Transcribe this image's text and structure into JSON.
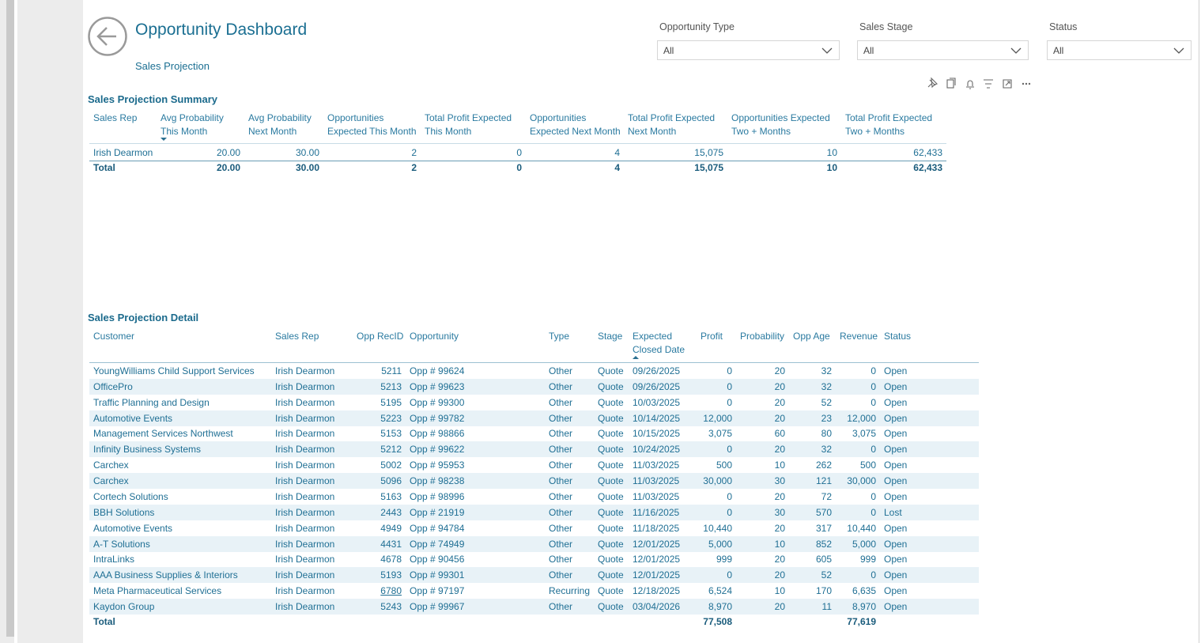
{
  "header": {
    "title": "Opportunity Dashboard",
    "subtitle": "Sales Projection"
  },
  "filters": [
    {
      "label": "Opportunity Type",
      "value": "All"
    },
    {
      "label": "Sales Stage",
      "value": "All"
    },
    {
      "label": "Status",
      "value": "All"
    }
  ],
  "summary": {
    "title": "Sales Projection Summary",
    "columns": [
      [
        "Sales Rep"
      ],
      [
        "Avg Probability",
        "This Month"
      ],
      [
        "Avg Probability",
        "Next Month"
      ],
      [
        "Opportunities",
        "Expected This Month"
      ],
      [
        "Total Profit Expected",
        "This Month"
      ],
      [
        "Opportunities",
        "Expected Next Month"
      ],
      [
        "Total Profit Expected",
        "Next Month"
      ],
      [
        "Opportunities Expected",
        "Two + Months"
      ],
      [
        "Total Profit Expected",
        "Two + Months"
      ]
    ],
    "rows": [
      [
        "Irish Dearmon",
        "20.00",
        "30.00",
        "2",
        "0",
        "4",
        "15,075",
        "10",
        "62,433"
      ]
    ],
    "total": [
      "Total",
      "20.00",
      "30.00",
      "2",
      "0",
      "4",
      "15,075",
      "10",
      "62,433"
    ]
  },
  "detail": {
    "title": "Sales Projection Detail",
    "columns": [
      [
        "Customer"
      ],
      [
        "Sales Rep"
      ],
      [
        "Opp RecID"
      ],
      [
        "Opportunity"
      ],
      [
        "Type"
      ],
      [
        "Stage"
      ],
      [
        "Expected",
        "Closed Date"
      ],
      [
        "Profit"
      ],
      [
        "Probability"
      ],
      [
        "Opp Age"
      ],
      [
        "Revenue"
      ],
      [
        "Status"
      ]
    ],
    "rows": [
      [
        "YoungWilliams Child Support Services",
        "Irish Dearmon",
        "5211",
        "Opp # 99624",
        "Other",
        "Quote",
        "09/26/2025",
        "0",
        "20",
        "32",
        "0",
        "Open"
      ],
      [
        "OfficePro",
        "Irish Dearmon",
        "5213",
        "Opp # 99623",
        "Other",
        "Quote",
        "09/26/2025",
        "0",
        "20",
        "32",
        "0",
        "Open"
      ],
      [
        "Traffic Planning and Design",
        "Irish Dearmon",
        "5195",
        "Opp # 99300",
        "Other",
        "Quote",
        "10/03/2025",
        "0",
        "20",
        "52",
        "0",
        "Open"
      ],
      [
        "Automotive Events",
        "Irish Dearmon",
        "5223",
        "Opp # 99782",
        "Other",
        "Quote",
        "10/14/2025",
        "12,000",
        "20",
        "23",
        "12,000",
        "Open"
      ],
      [
        "Management Services Northwest",
        "Irish Dearmon",
        "5153",
        "Opp # 98866",
        "Other",
        "Quote",
        "10/15/2025",
        "3,075",
        "60",
        "80",
        "3,075",
        "Open"
      ],
      [
        "Infinity Business Systems",
        "Irish Dearmon",
        "5212",
        "Opp # 99622",
        "Other",
        "Quote",
        "10/24/2025",
        "0",
        "20",
        "32",
        "0",
        "Open"
      ],
      [
        "Carchex",
        "Irish Dearmon",
        "5002",
        "Opp # 95953",
        "Other",
        "Quote",
        "11/03/2025",
        "500",
        "10",
        "262",
        "500",
        "Open"
      ],
      [
        "Carchex",
        "Irish Dearmon",
        "5096",
        "Opp # 98238",
        "Other",
        "Quote",
        "11/03/2025",
        "30,000",
        "30",
        "121",
        "30,000",
        "Open"
      ],
      [
        "Cortech Solutions",
        "Irish Dearmon",
        "5163",
        "Opp # 98996",
        "Other",
        "Quote",
        "11/03/2025",
        "0",
        "20",
        "72",
        "0",
        "Open"
      ],
      [
        "BBH Solutions",
        "Irish Dearmon",
        "2443",
        "Opp # 21919",
        "Other",
        "Quote",
        "11/16/2025",
        "0",
        "30",
        "570",
        "0",
        "Lost"
      ],
      [
        "Automotive Events",
        "Irish Dearmon",
        "4949",
        "Opp # 94784",
        "Other",
        "Quote",
        "11/18/2025",
        "10,440",
        "20",
        "317",
        "10,440",
        "Open"
      ],
      [
        "A-T Solutions",
        "Irish Dearmon",
        "4431",
        "Opp # 74949",
        "Other",
        "Quote",
        "12/01/2025",
        "5,000",
        "10",
        "852",
        "5,000",
        "Open"
      ],
      [
        "IntraLinks",
        "Irish Dearmon",
        "4678",
        "Opp # 90456",
        "Other",
        "Quote",
        "12/01/2025",
        "999",
        "20",
        "605",
        "999",
        "Open"
      ],
      [
        "AAA Business Supplies & Interiors",
        "Irish Dearmon",
        "5193",
        "Opp # 99301",
        "Other",
        "Quote",
        "12/01/2025",
        "0",
        "20",
        "52",
        "0",
        "Open"
      ],
      [
        "Meta Pharmaceutical Services",
        "Irish Dearmon",
        "6780",
        "Opp # 97197",
        "Recurring",
        "Quote",
        "12/18/2025",
        "6,524",
        "10",
        "170",
        "6,635",
        "Open"
      ],
      [
        "Kaydon Group",
        "Irish Dearmon",
        "5243",
        "Opp # 99967",
        "Other",
        "Quote",
        "03/04/2026",
        "8,970",
        "20",
        "11",
        "8,970",
        "Open"
      ]
    ],
    "total": {
      "label": "Total",
      "profit": "77,508",
      "revenue": "77,619"
    }
  }
}
